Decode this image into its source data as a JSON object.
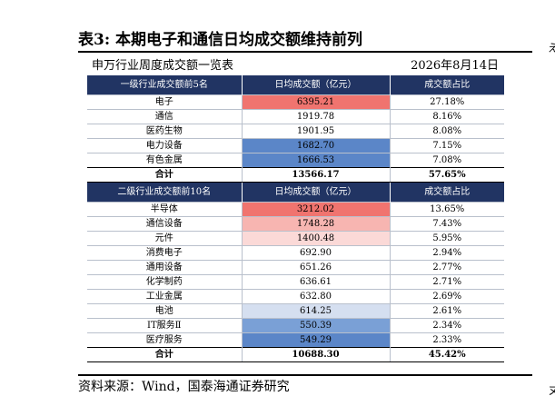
{
  "title": "表3:  本期电子和通信日均成交额维持前列",
  "subtitle": {
    "left": "申万行业周度成交额一览表",
    "right": "2026年8月14日"
  },
  "edge_text": {
    "top": "え",
    "bottom": "ヌ"
  },
  "colors": {
    "header_bg": "#213463",
    "red_dark": "#f0746f",
    "red_mid": "#f7b5b1",
    "red_light": "#fbd9d7",
    "blue_light": "#d5dff0",
    "blue_mid": "#7aa0d6",
    "blue_dark": "#5b86c8"
  },
  "level1": {
    "headers": [
      "一级行业成交额前5名",
      "日均成交额（亿元）",
      "成交额占比"
    ],
    "rows": [
      {
        "name": "电子",
        "value": "6395.21",
        "share": "27.18%",
        "shade": "red_dark"
      },
      {
        "name": "通信",
        "value": "1919.78",
        "share": "8.16%",
        "shade": ""
      },
      {
        "name": "医药生物",
        "value": "1901.95",
        "share": "8.08%",
        "shade": ""
      },
      {
        "name": "电力设备",
        "value": "1682.70",
        "share": "7.15%",
        "shade": "blue_dark"
      },
      {
        "name": "有色金属",
        "value": "1666.53",
        "share": "7.08%",
        "shade": "blue_dark"
      }
    ],
    "total": {
      "name": "合计",
      "value": "13566.17",
      "share": "57.65%"
    }
  },
  "level2": {
    "headers": [
      "二级行业成交额前10名",
      "日均成交额（亿元）",
      "成交额占比"
    ],
    "rows": [
      {
        "name": "半导体",
        "value": "3212.02",
        "share": "13.65%",
        "shade": "red_dark"
      },
      {
        "name": "通信设备",
        "value": "1748.28",
        "share": "7.43%",
        "shade": "red_mid"
      },
      {
        "name": "元件",
        "value": "1400.48",
        "share": "5.95%",
        "shade": "red_light"
      },
      {
        "name": "消费电子",
        "value": "692.90",
        "share": "2.94%",
        "shade": ""
      },
      {
        "name": "通用设备",
        "value": "651.26",
        "share": "2.77%",
        "shade": ""
      },
      {
        "name": "化学制药",
        "value": "636.61",
        "share": "2.71%",
        "shade": ""
      },
      {
        "name": "工业金属",
        "value": "632.80",
        "share": "2.69%",
        "shade": ""
      },
      {
        "name": "电池",
        "value": "614.25",
        "share": "2.61%",
        "shade": "blue_light"
      },
      {
        "name": "IT服务Ⅱ",
        "value": "550.39",
        "share": "2.34%",
        "shade": "blue_mid"
      },
      {
        "name": "医疗服务",
        "value": "549.29",
        "share": "2.33%",
        "shade": "blue_dark"
      }
    ],
    "total": {
      "name": "合计",
      "value": "10688.30",
      "share": "45.42%"
    }
  },
  "source": "资料来源：Wind，国泰海通证券研究"
}
